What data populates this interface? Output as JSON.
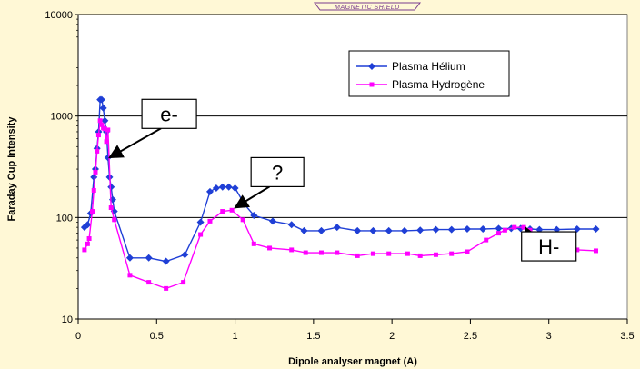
{
  "logo_text": "MAGNETIC SHIELD",
  "chart_data": {
    "type": "line",
    "title": "",
    "xlabel": "Dipole analyser magnet (A)",
    "ylabel": "Faraday Cup Intensity",
    "xlim": [
      0,
      3.5
    ],
    "ylim": [
      10,
      10000
    ],
    "yscale": "log",
    "x_ticks": [
      "0",
      "0.5",
      "1",
      "1.5",
      "2",
      "2.5",
      "3",
      "3.5"
    ],
    "y_ticks": [
      "10",
      "100",
      "1000",
      "10000"
    ],
    "grid": "horizontal",
    "legend_position": "top-right",
    "series": [
      {
        "name": "Plasma Hélium",
        "color": "#1f3fd6",
        "marker": "diamond",
        "points": [
          [
            0.04,
            80
          ],
          [
            0.06,
            85
          ],
          [
            0.08,
            110
          ],
          [
            0.1,
            250
          ],
          [
            0.11,
            300
          ],
          [
            0.12,
            480
          ],
          [
            0.13,
            700
          ],
          [
            0.14,
            1450
          ],
          [
            0.15,
            1450
          ],
          [
            0.16,
            1200
          ],
          [
            0.17,
            900
          ],
          [
            0.18,
            700
          ],
          [
            0.19,
            390
          ],
          [
            0.2,
            250
          ],
          [
            0.21,
            200
          ],
          [
            0.22,
            150
          ],
          [
            0.23,
            115
          ],
          [
            0.33,
            40
          ],
          [
            0.45,
            40
          ],
          [
            0.56,
            37
          ],
          [
            0.68,
            43
          ],
          [
            0.78,
            90
          ],
          [
            0.84,
            180
          ],
          [
            0.88,
            195
          ],
          [
            0.92,
            200
          ],
          [
            0.96,
            200
          ],
          [
            1.0,
            195
          ],
          [
            1.06,
            135
          ],
          [
            1.12,
            105
          ],
          [
            1.24,
            92
          ],
          [
            1.36,
            85
          ],
          [
            1.44,
            74
          ],
          [
            1.55,
            74
          ],
          [
            1.65,
            80
          ],
          [
            1.78,
            74
          ],
          [
            1.88,
            74
          ],
          [
            1.98,
            74
          ],
          [
            2.08,
            74
          ],
          [
            2.18,
            75
          ],
          [
            2.28,
            76
          ],
          [
            2.38,
            76
          ],
          [
            2.48,
            77
          ],
          [
            2.58,
            77
          ],
          [
            2.68,
            78
          ],
          [
            2.76,
            78
          ],
          [
            2.82,
            78
          ],
          [
            2.88,
            77
          ],
          [
            2.94,
            76
          ],
          [
            3.05,
            76
          ],
          [
            3.18,
            77
          ],
          [
            3.3,
            77
          ]
        ]
      },
      {
        "name": "Plasma Hydrogène",
        "color": "#ff00ff",
        "marker": "square",
        "points": [
          [
            0.04,
            48
          ],
          [
            0.06,
            55
          ],
          [
            0.07,
            62
          ],
          [
            0.09,
            115
          ],
          [
            0.1,
            185
          ],
          [
            0.11,
            280
          ],
          [
            0.12,
            450
          ],
          [
            0.13,
            650
          ],
          [
            0.14,
            900
          ],
          [
            0.15,
            820
          ],
          [
            0.16,
            760
          ],
          [
            0.17,
            750
          ],
          [
            0.18,
            560
          ],
          [
            0.19,
            730
          ],
          [
            0.21,
            125
          ],
          [
            0.23,
            95
          ],
          [
            0.33,
            27
          ],
          [
            0.45,
            23
          ],
          [
            0.56,
            20
          ],
          [
            0.67,
            23
          ],
          [
            0.78,
            68
          ],
          [
            0.84,
            92
          ],
          [
            0.92,
            115
          ],
          [
            0.98,
            118
          ],
          [
            1.05,
            95
          ],
          [
            1.12,
            55
          ],
          [
            1.22,
            50
          ],
          [
            1.36,
            48
          ],
          [
            1.45,
            45
          ],
          [
            1.55,
            45
          ],
          [
            1.65,
            45
          ],
          [
            1.78,
            42
          ],
          [
            1.88,
            44
          ],
          [
            1.98,
            44
          ],
          [
            2.1,
            44
          ],
          [
            2.18,
            42
          ],
          [
            2.28,
            43
          ],
          [
            2.38,
            44
          ],
          [
            2.48,
            46
          ],
          [
            2.6,
            60
          ],
          [
            2.68,
            70
          ],
          [
            2.72,
            75
          ],
          [
            2.78,
            80
          ],
          [
            2.84,
            80
          ],
          [
            2.88,
            75
          ],
          [
            2.94,
            60
          ],
          [
            3.0,
            50
          ],
          [
            3.1,
            44
          ],
          [
            3.18,
            48
          ],
          [
            3.3,
            47
          ]
        ]
      }
    ],
    "annotations": [
      {
        "text": "e-",
        "box_at": [
          0.58,
          1050
        ],
        "arrow_to": [
          0.2,
          390
        ]
      },
      {
        "text": "?",
        "box_at": [
          1.27,
          280
        ],
        "arrow_to": [
          1.0,
          125
        ]
      },
      {
        "text": "H-",
        "box_at": [
          3.0,
          52
        ],
        "arrow_to": [
          2.85,
          80
        ]
      }
    ]
  }
}
